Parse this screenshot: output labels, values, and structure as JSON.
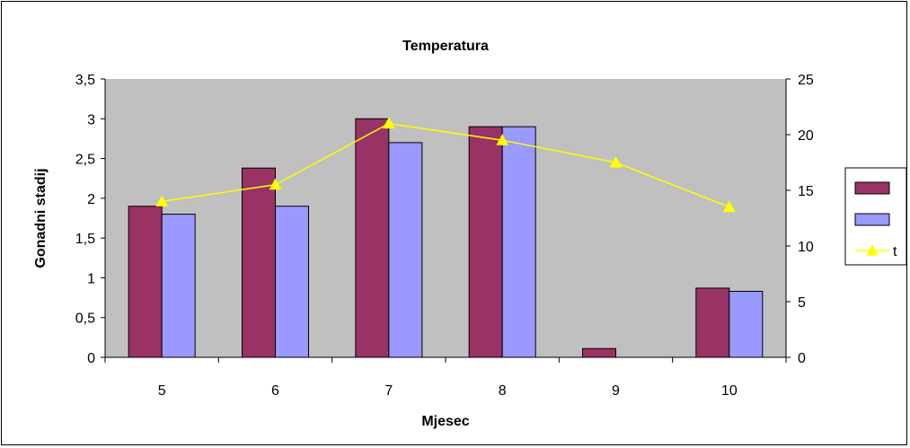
{
  "chart_data": {
    "type": "bar",
    "title": "Temperatura",
    "xlabel": "Mjesec",
    "ylabel": "Gonadni stadij",
    "y2label": "",
    "categories": [
      "5",
      "6",
      "7",
      "8",
      "9",
      "10"
    ],
    "ylim": [
      0,
      3.5
    ],
    "y2lim": [
      0,
      25
    ],
    "y_ticks": [
      "0",
      "0,5",
      "1",
      "1,5",
      "2",
      "2,5",
      "3",
      "3,5"
    ],
    "y2_ticks": [
      "0",
      "5",
      "10",
      "15",
      "20",
      "25"
    ],
    "grid": false,
    "legend_position": "right",
    "series": [
      {
        "name": "",
        "kind": "bar",
        "axis": "left",
        "color": "#993366",
        "values": [
          1.9,
          2.38,
          3.0,
          2.9,
          0.11,
          0.87
        ]
      },
      {
        "name": "",
        "kind": "bar",
        "axis": "left",
        "color": "#9999ff",
        "values": [
          1.8,
          1.9,
          2.7,
          2.9,
          0,
          0.83
        ]
      },
      {
        "name": "t",
        "kind": "line",
        "axis": "right",
        "color": "#ffff00",
        "marker": "triangle",
        "values": [
          14.0,
          15.5,
          21.0,
          19.5,
          17.5,
          13.5
        ]
      }
    ],
    "plot_background": "#c0c0c0"
  }
}
